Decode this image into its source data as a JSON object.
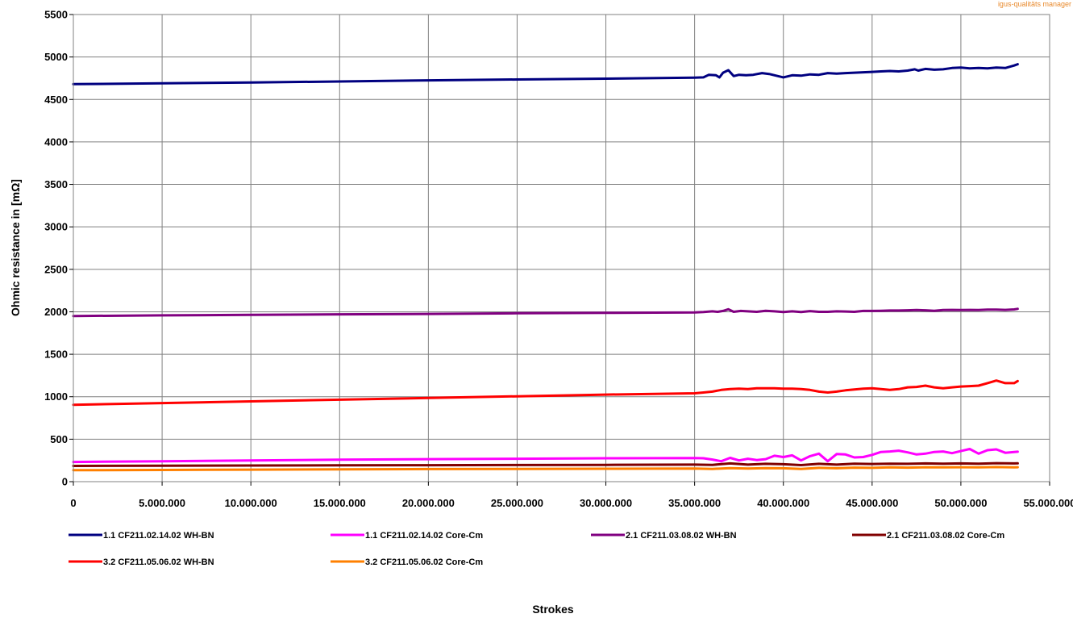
{
  "corner_text": "igus-qualitäts manager",
  "chart_data": {
    "type": "line",
    "title": "",
    "xlabel": "Strokes",
    "ylabel": "Ohmic resistance in [mΩ]",
    "xlim": [
      0,
      55000000
    ],
    "ylim": [
      0,
      5500
    ],
    "x_ticks": [
      0,
      5000000,
      10000000,
      15000000,
      20000000,
      25000000,
      30000000,
      35000000,
      40000000,
      45000000,
      50000000,
      55000000
    ],
    "x_tick_labels": [
      "0",
      "5.000.000",
      "10.000.000",
      "15.000.000",
      "20.000.000",
      "25.000.000",
      "30.000.000",
      "35.000.000",
      "40.000.000",
      "45.000.000",
      "50.000.000",
      "55.000.000"
    ],
    "y_ticks": [
      0,
      500,
      1000,
      1500,
      2000,
      2500,
      3000,
      3500,
      4000,
      4500,
      5000,
      5500
    ],
    "y_tick_labels": [
      "0",
      "500",
      "1000",
      "1500",
      "2000",
      "2500",
      "3000",
      "3500",
      "4000",
      "4500",
      "5000",
      "5500"
    ],
    "grid": true,
    "legend_position": "bottom",
    "series": [
      {
        "name": "1.1 CF211.02.14.02 WH-BN",
        "color": "#000080",
        "x": [
          0,
          5000000,
          10000000,
          15000000,
          20000000,
          25000000,
          30000000,
          35000000,
          35500000,
          35800000,
          36200000,
          36400000,
          36600000,
          36900000,
          37200000,
          37500000,
          37900000,
          38300000,
          38800000,
          39200000,
          39600000,
          40000000,
          40500000,
          41000000,
          41500000,
          42000000,
          42500000,
          43000000,
          43500000,
          44000000,
          44500000,
          45000000,
          45500000,
          46000000,
          46500000,
          47000000,
          47400000,
          47600000,
          48000000,
          48500000,
          49000000,
          49500000,
          50000000,
          50500000,
          51000000,
          51500000,
          52000000,
          52500000,
          53000000,
          53200000
        ],
        "y": [
          4680,
          4690,
          4700,
          4712,
          4725,
          4735,
          4745,
          4757,
          4760,
          4790,
          4785,
          4760,
          4815,
          4845,
          4775,
          4790,
          4785,
          4790,
          4810,
          4800,
          4780,
          4760,
          4785,
          4780,
          4795,
          4790,
          4810,
          4805,
          4810,
          4815,
          4820,
          4825,
          4830,
          4835,
          4830,
          4840,
          4855,
          4840,
          4860,
          4850,
          4855,
          4870,
          4875,
          4865,
          4870,
          4865,
          4875,
          4870,
          4900,
          4915
        ]
      },
      {
        "name": "1.1 CF211.02.14.02 Core-Cm",
        "color": "#ff00ff",
        "x": [
          0,
          5000000,
          10000000,
          15000000,
          20000000,
          25000000,
          30000000,
          35000000,
          35500000,
          36000000,
          36500000,
          37000000,
          37500000,
          38000000,
          38500000,
          39000000,
          39500000,
          40000000,
          40500000,
          41000000,
          41500000,
          42000000,
          42500000,
          43000000,
          43500000,
          44000000,
          44500000,
          45000000,
          45500000,
          46000000,
          46500000,
          47000000,
          47500000,
          48000000,
          48500000,
          49000000,
          49500000,
          50000000,
          50500000,
          51000000,
          51500000,
          52000000,
          52500000,
          53000000,
          53200000
        ],
        "y": [
          232,
          240,
          250,
          258,
          265,
          270,
          275,
          278,
          275,
          260,
          240,
          280,
          250,
          270,
          255,
          265,
          305,
          290,
          310,
          250,
          300,
          330,
          240,
          325,
          320,
          285,
          290,
          315,
          350,
          355,
          365,
          345,
          320,
          330,
          350,
          355,
          335,
          360,
          385,
          330,
          370,
          380,
          340,
          350,
          352
        ]
      },
      {
        "name": "2.1 CF211.03.08.02 WH-BN",
        "color": "#800080",
        "x": [
          0,
          5000000,
          10000000,
          15000000,
          20000000,
          25000000,
          30000000,
          35000000,
          35500000,
          36000000,
          36300000,
          36600000,
          36900000,
          37200000,
          37600000,
          38000000,
          38500000,
          39000000,
          39500000,
          40000000,
          40500000,
          41000000,
          41500000,
          42000000,
          42500000,
          43000000,
          43500000,
          44000000,
          44500000,
          45000000,
          45500000,
          46000000,
          46500000,
          47000000,
          47500000,
          48000000,
          48500000,
          49000000,
          49500000,
          50000000,
          50500000,
          51000000,
          51500000,
          52000000,
          52500000,
          53000000,
          53200000
        ],
        "y": [
          1950,
          1958,
          1963,
          1970,
          1975,
          1982,
          1987,
          1993,
          1997,
          2005,
          2000,
          2010,
          2030,
          2000,
          2010,
          2005,
          2000,
          2012,
          2005,
          1998,
          2005,
          1998,
          2008,
          2000,
          2000,
          2005,
          2003,
          2000,
          2010,
          2010,
          2012,
          2015,
          2015,
          2018,
          2020,
          2018,
          2012,
          2020,
          2022,
          2020,
          2022,
          2020,
          2025,
          2025,
          2022,
          2028,
          2035
        ]
      },
      {
        "name": "2.1 CF211.03.08.02 Core-Cm",
        "color": "#800000",
        "x": [
          0,
          5000000,
          10000000,
          15000000,
          20000000,
          25000000,
          30000000,
          35000000,
          36000000,
          37000000,
          38000000,
          39000000,
          40000000,
          41000000,
          42000000,
          43000000,
          44000000,
          45000000,
          46000000,
          47000000,
          48000000,
          49000000,
          50000000,
          51000000,
          52000000,
          53000000,
          53200000
        ],
        "y": [
          185,
          188,
          190,
          192,
          194,
          196,
          198,
          200,
          198,
          215,
          200,
          210,
          205,
          195,
          210,
          200,
          212,
          208,
          212,
          210,
          215,
          212,
          215,
          212,
          218,
          215,
          216
        ]
      },
      {
        "name": "3.2 CF211.05.06.02 WH-BN",
        "color": "#ff0000",
        "x": [
          0,
          5000000,
          10000000,
          15000000,
          20000000,
          25000000,
          30000000,
          35000000,
          35500000,
          36000000,
          36500000,
          37000000,
          37500000,
          38000000,
          38500000,
          39000000,
          39500000,
          40000000,
          40500000,
          41000000,
          41500000,
          42000000,
          42500000,
          43000000,
          43500000,
          44000000,
          44500000,
          45000000,
          45500000,
          46000000,
          46500000,
          47000000,
          47500000,
          48000000,
          48500000,
          49000000,
          49500000,
          50000000,
          50500000,
          51000000,
          51500000,
          52000000,
          52500000,
          53000000,
          53200000
        ],
        "y": [
          905,
          925,
          945,
          965,
          985,
          1005,
          1025,
          1040,
          1050,
          1060,
          1080,
          1090,
          1095,
          1090,
          1100,
          1100,
          1100,
          1095,
          1095,
          1090,
          1080,
          1060,
          1050,
          1060,
          1075,
          1085,
          1095,
          1100,
          1090,
          1080,
          1090,
          1110,
          1115,
          1130,
          1110,
          1100,
          1110,
          1120,
          1125,
          1130,
          1160,
          1190,
          1160,
          1160,
          1185
        ]
      },
      {
        "name": "3.2 CF211.05.06.02 Core-Cm",
        "color": "#ff8000",
        "x": [
          0,
          5000000,
          10000000,
          15000000,
          20000000,
          25000000,
          30000000,
          35000000,
          36000000,
          37000000,
          38000000,
          39000000,
          40000000,
          41000000,
          42000000,
          43000000,
          44000000,
          45000000,
          46000000,
          47000000,
          48000000,
          49000000,
          50000000,
          51000000,
          52000000,
          53000000,
          53200000
        ],
        "y": [
          135,
          138,
          142,
          145,
          148,
          150,
          152,
          155,
          150,
          160,
          155,
          160,
          158,
          150,
          162,
          158,
          165,
          162,
          168,
          165,
          170,
          168,
          170,
          168,
          172,
          168,
          170
        ]
      }
    ]
  }
}
